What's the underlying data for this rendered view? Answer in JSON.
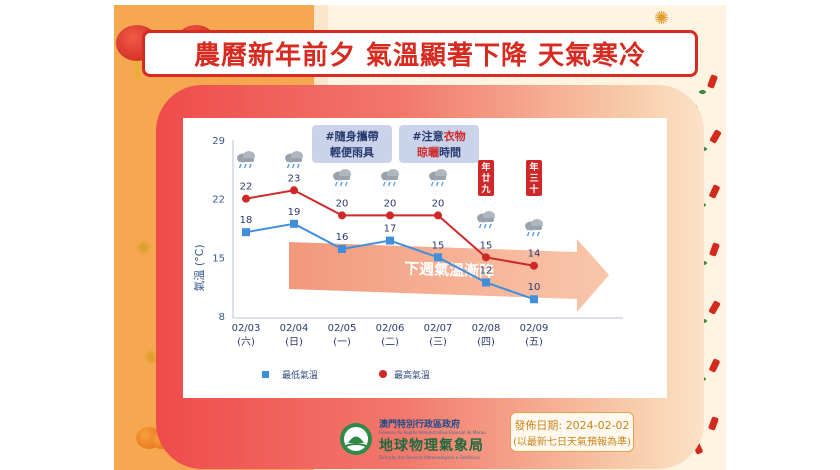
{
  "title": "農曆新年前夕  氣溫顯著下降  天氣寒冷",
  "notes": {
    "note1_line1": "#隨身攜帶",
    "note1_line2": "輕便雨具",
    "note2_line1_a": "#注意",
    "note2_line1_b": "衣物",
    "note2_line2_a": "晾曬",
    "note2_line2_b": "時間"
  },
  "trend_label": "下週氣溫漸降",
  "special_days": [
    {
      "index": 5,
      "label": [
        "年",
        "廿",
        "九"
      ]
    },
    {
      "index": 6,
      "label": [
        "年",
        "三",
        "十"
      ]
    }
  ],
  "weather_icons": [
    "rain-cloud-icon",
    "rain-cloud-icon",
    "rain-cloud-icon",
    "rain-cloud-icon",
    "rain-cloud-icon",
    "rain-cloud-icon",
    "rain-cloud-icon"
  ],
  "chart_data": {
    "type": "line",
    "categories": [
      "02/03",
      "02/04",
      "02/05",
      "02/06",
      "02/07",
      "02/08",
      "02/09"
    ],
    "weekdays": [
      "(六)",
      "(日)",
      "(一)",
      "(二)",
      "(三)",
      "(四)",
      "(五)"
    ],
    "series": [
      {
        "name": "最低氣溫",
        "values": [
          18,
          19,
          16,
          17,
          15,
          12,
          10
        ],
        "color": "#3f8fdc",
        "marker": "square"
      },
      {
        "name": "最高氣溫",
        "values": [
          22,
          23,
          20,
          20,
          20,
          15,
          14
        ],
        "color": "#cf2828",
        "marker": "circle"
      }
    ],
    "ylabel": "氣溫 (°C)",
    "yticks": [
      8,
      15,
      22,
      29
    ],
    "ylim": [
      8,
      29
    ],
    "grid": false,
    "legend": "bottom"
  },
  "issue": {
    "date_line": "發佈日期: 2024-02-02",
    "note_line": "(以最新七日天氣預報為準)"
  },
  "brand": {
    "gov": "澳門特別行政區政府",
    "gov_sub": "Governo da Região Administrativa Especial de Macau",
    "name": "地球物理氣象局",
    "name_sub": "Direcção dos Serviços Meteorológicos e Geofísicos"
  },
  "colors": {
    "accent_red": "#d72b21",
    "low_blue": "#3f8fdc",
    "high_red": "#cf2828",
    "note_bg": "#c9d3ea",
    "trend_arrow": "#f0a47c"
  }
}
